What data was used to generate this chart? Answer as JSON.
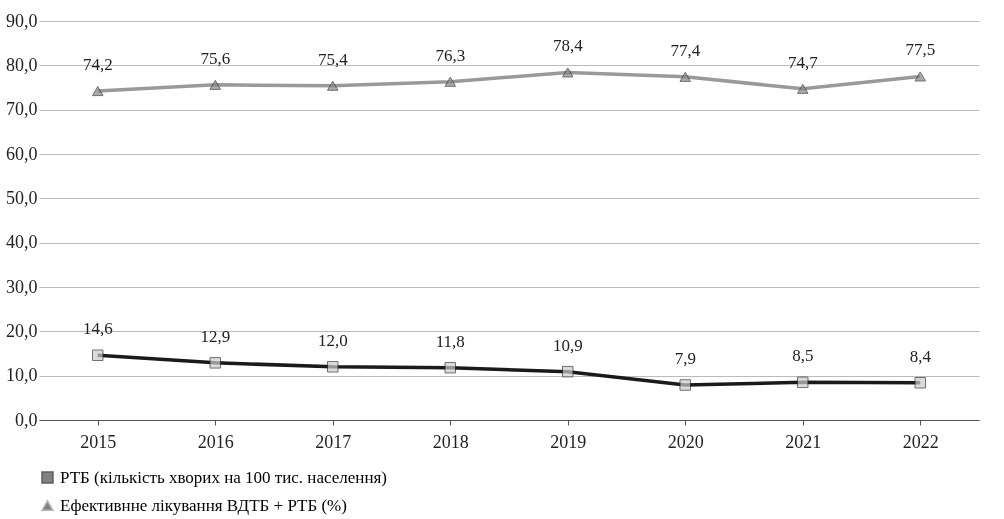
{
  "chart_data": {
    "type": "line",
    "categories": [
      "2015",
      "2016",
      "2017",
      "2018",
      "2019",
      "2020",
      "2021",
      "2022"
    ],
    "series": [
      {
        "name": "РТБ (кількість хворих на 100 тис. населення)",
        "color": "#1a1a1a",
        "marker": "square",
        "values": [
          14.6,
          12.9,
          12.0,
          11.8,
          10.9,
          7.9,
          8.5,
          8.4
        ],
        "value_labels": [
          "14,6",
          "12,9",
          "12,0",
          "11,8",
          "10,9",
          "7,9",
          "8,5",
          "8,4"
        ]
      },
      {
        "name": "Ефективнне лікування ВДТБ + РТБ (%)",
        "color": "#999999",
        "marker": "triangle",
        "values": [
          74.2,
          75.6,
          75.4,
          76.3,
          78.4,
          77.4,
          74.7,
          77.5
        ],
        "value_labels": [
          "74,2",
          "75,6",
          "75,4",
          "76,3",
          "78,4",
          "77,4",
          "74,7",
          "77,5"
        ]
      }
    ],
    "ylim": [
      0,
      90
    ],
    "yticks": [
      {
        "value": 0,
        "label": "0,0"
      },
      {
        "value": 10,
        "label": "10,0"
      },
      {
        "value": 20,
        "label": "20,0"
      },
      {
        "value": 30,
        "label": "30,0"
      },
      {
        "value": 40,
        "label": "40,0"
      },
      {
        "value": 50,
        "label": "50,0"
      },
      {
        "value": 60,
        "label": "60,0"
      },
      {
        "value": 70,
        "label": "70,0"
      },
      {
        "value": 80,
        "label": "80,0"
      },
      {
        "value": 90,
        "label": "90,0"
      }
    ],
    "grid": "y",
    "legend": "bottom",
    "line_style": "solid"
  }
}
